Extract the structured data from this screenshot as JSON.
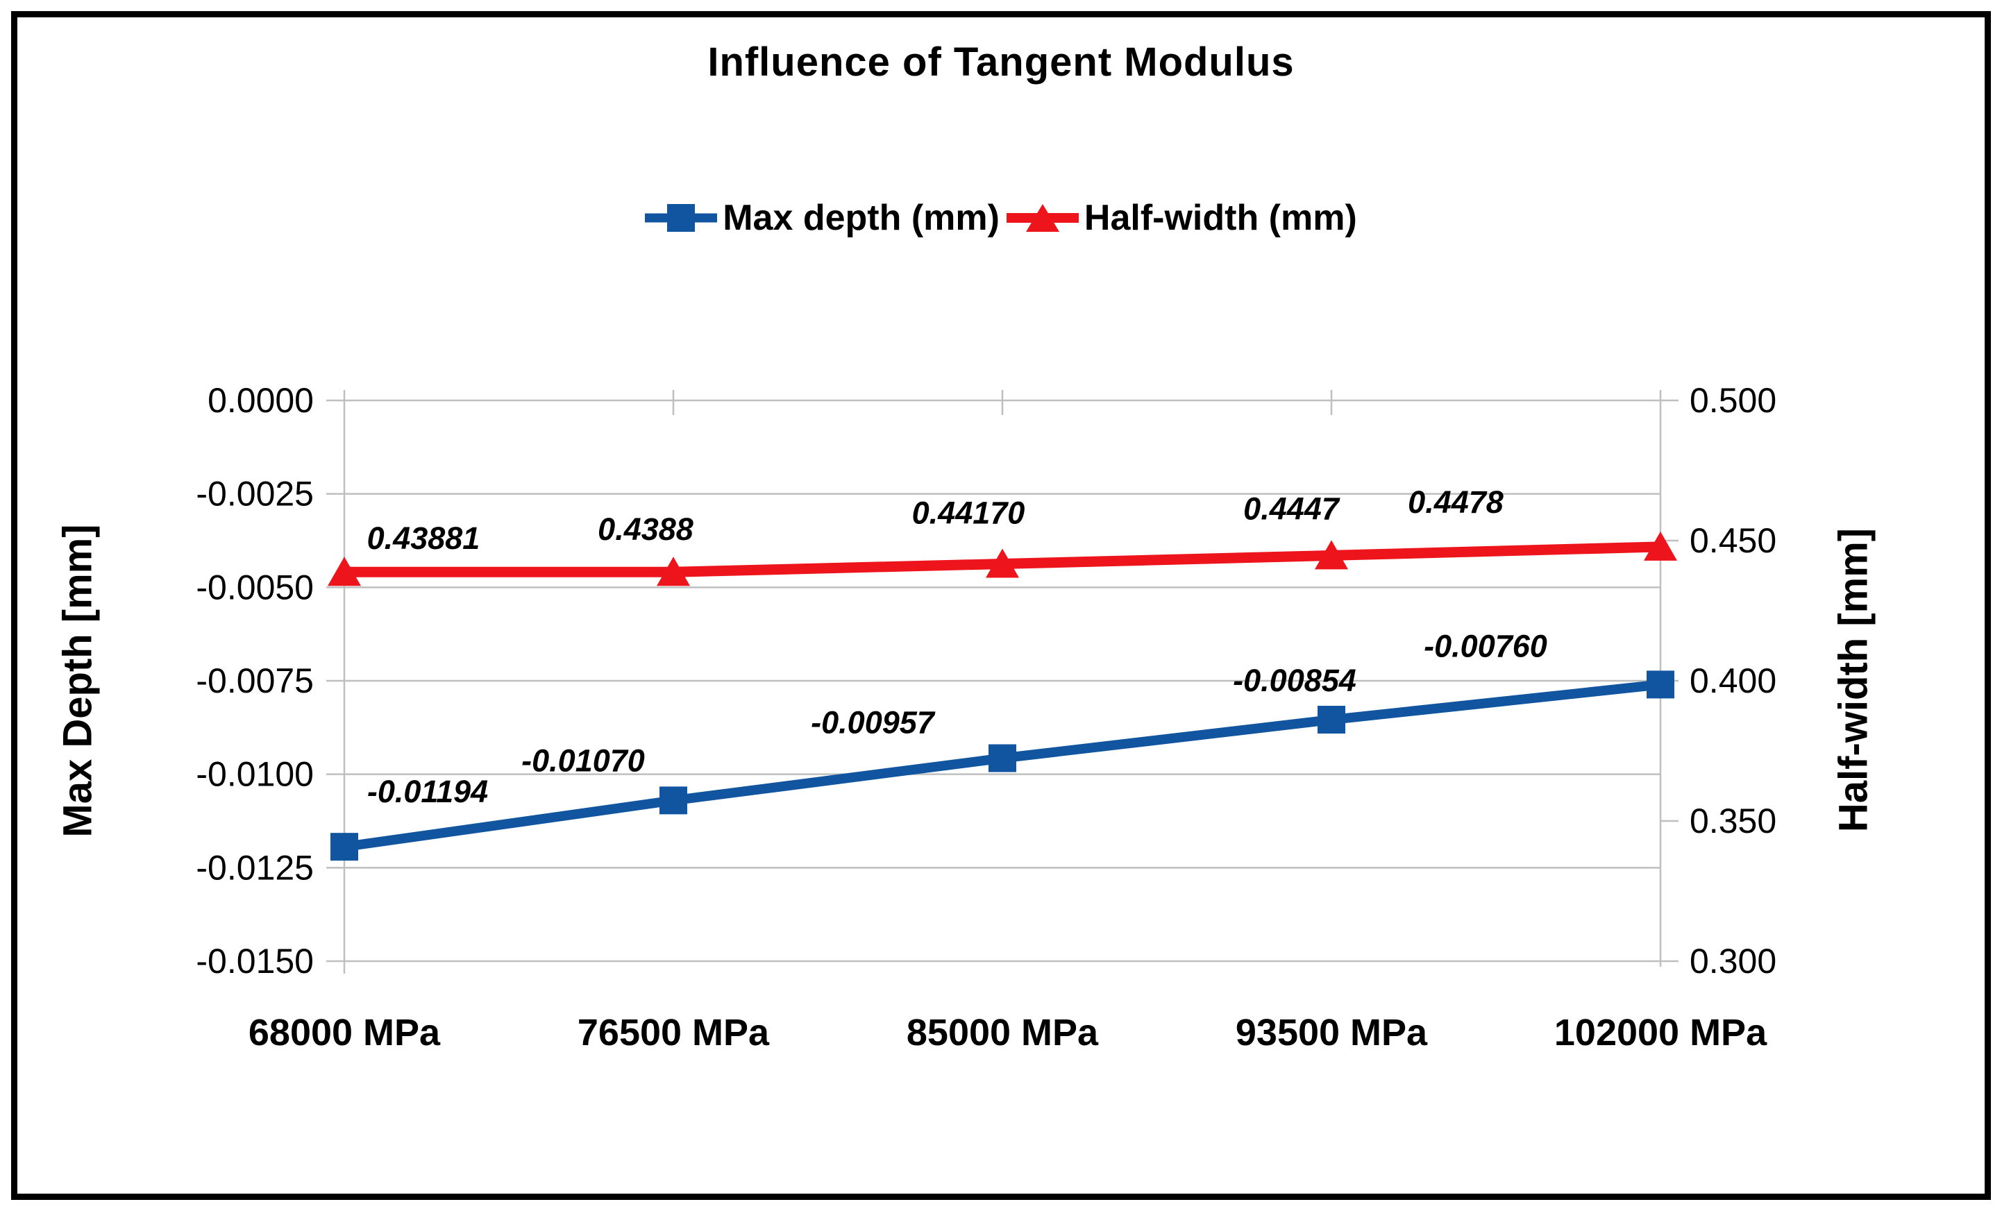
{
  "title": "Influence of Tangent Modulus",
  "legend": [
    {
      "label": "Max depth (mm)"
    },
    {
      "label": "Half-width (mm)"
    }
  ],
  "axes": {
    "left": {
      "title": "Max Depth [mm]",
      "ticks": [
        "0.0000",
        "-0.0025",
        "-0.0050",
        "-0.0075",
        "-0.0100",
        "-0.0125",
        "-0.0150"
      ]
    },
    "right": {
      "title": "Half-width [mm]",
      "ticks": [
        "0.500",
        "0.450",
        "0.400",
        "0.350",
        "0.300"
      ]
    },
    "x": {
      "categories": [
        "68000 MPa",
        "76500 MPa",
        "85000 MPa",
        "93500 MPa",
        "102000 MPa"
      ]
    }
  },
  "chart_data": {
    "type": "line",
    "title": "Influence of Tangent Modulus",
    "categories": [
      "68000 MPa",
      "76500 MPa",
      "85000 MPa",
      "93500 MPa",
      "102000 MPa"
    ],
    "series": [
      {
        "key": "max_depth",
        "name": "Max depth (mm)",
        "axis": "left",
        "color": "#1155A0",
        "marker": "square",
        "values": [
          -0.01194,
          -0.0107,
          -0.00957,
          -0.00854,
          -0.0076
        ],
        "labels": [
          "-0.01194",
          "-0.01070",
          "-0.00957",
          "-0.00854",
          "-0.00760"
        ]
      },
      {
        "key": "half_width",
        "name": "Half-width (mm)",
        "axis": "right",
        "color": "#ED141C",
        "marker": "triangle",
        "values": [
          0.43881,
          0.4388,
          0.4417,
          0.4447,
          0.4478
        ],
        "labels": [
          "0.43881",
          "0.4388",
          "0.44170",
          "0.4447",
          "0.4478"
        ]
      }
    ],
    "ylabel_left": "Max Depth [mm]",
    "ylabel_right": "Half-width [mm]",
    "ylim_left": [
      -0.015,
      0
    ],
    "ylim_right": [
      0.3,
      0.5
    ],
    "grid": true,
    "legend_position": "top"
  },
  "colors": {
    "series_blue": "#1155A0",
    "series_red": "#ED141C",
    "gridline": "#BFBFBF",
    "text": "#000000",
    "frame": "#000000"
  }
}
